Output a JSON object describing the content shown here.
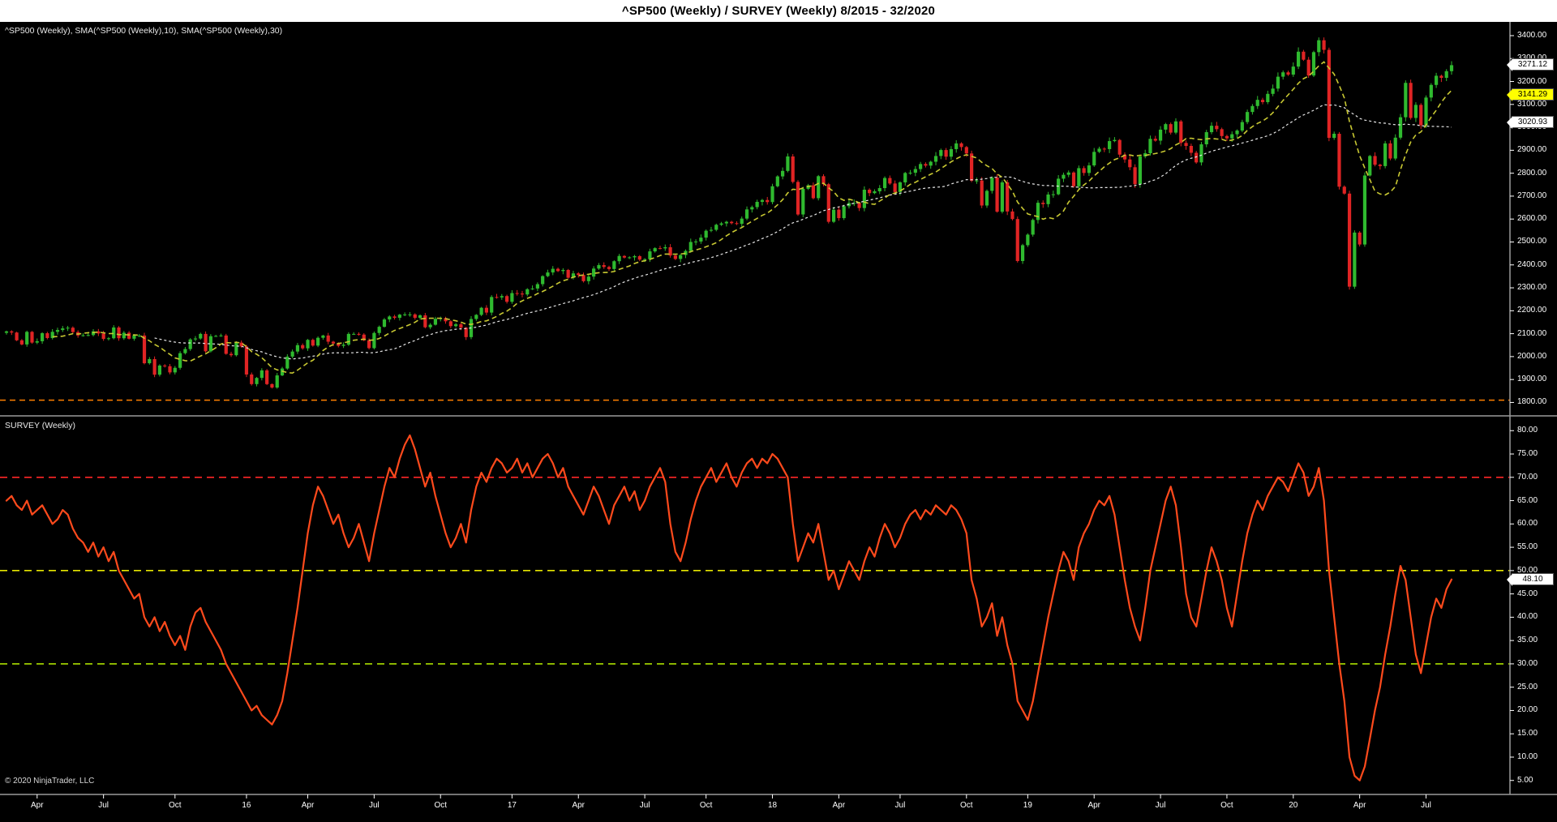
{
  "window": {
    "title": "^SP500 (Weekly) / SURVEY (Weekly)  8/2015 - 32/2020"
  },
  "price_panel": {
    "label": "^SP500 (Weekly), SMA(^SP500 (Weekly),10), SMA(^SP500 (Weekly),30)",
    "price_marker": {
      "label": "3271.12",
      "value": 3271.12,
      "bg": "#ffffff"
    },
    "sma10_marker": {
      "label": "3141.29",
      "value": 3141.29,
      "bg": "#ffff00"
    },
    "sma30_marker": {
      "label": "3020.93",
      "value": 3020.93,
      "bg": "#ffffff"
    }
  },
  "survey_panel": {
    "label": "SURVEY (Weekly)",
    "value_marker": {
      "label": "48.10",
      "value": 48.1,
      "bg": "#ffffff"
    }
  },
  "footer": {
    "copyright": "© 2020 NinjaTrader, LLC"
  },
  "chart_data": {
    "type": "multi-panel",
    "title": "^SP500 (Weekly) / SURVEY (Weekly)  8/2015 - 32/2020",
    "x_range": "week 8/2015 to week 32/2020, weekly bars",
    "x_tick_labels": [
      {
        "text": "Apr",
        "week": 6
      },
      {
        "text": "Jul",
        "week": 19
      },
      {
        "text": "Oct",
        "week": 33
      },
      {
        "text": "16",
        "week": 47
      },
      {
        "text": "Apr",
        "week": 59
      },
      {
        "text": "Jul",
        "week": 72
      },
      {
        "text": "Oct",
        "week": 85
      },
      {
        "text": "17",
        "week": 99
      },
      {
        "text": "Apr",
        "week": 112
      },
      {
        "text": "Jul",
        "week": 125
      },
      {
        "text": "Oct",
        "week": 137
      },
      {
        "text": "18",
        "week": 150
      },
      {
        "text": "Apr",
        "week": 163
      },
      {
        "text": "Jul",
        "week": 175
      },
      {
        "text": "Oct",
        "week": 188
      },
      {
        "text": "19",
        "week": 200
      },
      {
        "text": "Apr",
        "week": 213
      },
      {
        "text": "Jul",
        "week": 226
      },
      {
        "text": "Oct",
        "week": 239
      },
      {
        "text": "20",
        "week": 252
      },
      {
        "text": "Apr",
        "week": 265
      },
      {
        "text": "Jul",
        "week": 278
      }
    ],
    "panels": [
      {
        "title": "^SP500 (Weekly), SMA(^SP500 (Weekly),10), SMA(^SP500 (Weekly),30)",
        "type": "candlestick",
        "ylim": [
          1745,
          3460
        ],
        "y_tick_labels": [
          "3400.00",
          "3300.00",
          "3200.00",
          "3100.00",
          "3000.00",
          "2900.00",
          "2800.00",
          "2700.00",
          "2600.00",
          "2500.00",
          "2400.00",
          "2300.00",
          "2200.00",
          "2100.00",
          "2000.00",
          "1900.00",
          "1800.00"
        ],
        "up_color": "#2fba2f",
        "down_color": "#e02424",
        "overlays": [
          {
            "name": "SMA 10",
            "period": 10,
            "color": "#c8c832",
            "last_value": 3141.29
          },
          {
            "name": "SMA 30",
            "period": 30,
            "color": "#e6e6e6",
            "last_value": 3020.93
          }
        ],
        "reference_line": {
          "value": 1810,
          "color": "#ff8000"
        },
        "last_price": 3271.12,
        "weekly_closes": [
          2110,
          2105,
          2071,
          2053,
          2108,
          2061,
          2067,
          2102,
          2081,
          2108,
          2116,
          2123,
          2126,
          2107,
          2092,
          2093,
          2094,
          2110,
          2101,
          2077,
          2080,
          2127,
          2080,
          2104,
          2078,
          2092,
          2092,
          1971,
          1989,
          1921,
          1961,
          1958,
          1931,
          1951,
          2015,
          2033,
          2075,
          2079,
          2099,
          2023,
          2089,
          2090,
          2092,
          2012,
          2006,
          2061,
          2044,
          1922,
          1880,
          1907,
          1940,
          1880,
          1865,
          1918,
          1948,
          2000,
          2022,
          2050,
          2036,
          2073,
          2048,
          2082,
          2092,
          2065,
          2057,
          2047,
          2052,
          2099,
          2099,
          2096,
          2071,
          2037,
          2103,
          2130,
          2162,
          2175,
          2169,
          2183,
          2184,
          2184,
          2169,
          2180,
          2128,
          2139,
          2165,
          2168,
          2154,
          2133,
          2141,
          2126,
          2085,
          2164,
          2182,
          2213,
          2192,
          2260,
          2258,
          2264,
          2239,
          2277,
          2275,
          2271,
          2294,
          2297,
          2316,
          2351,
          2367,
          2383,
          2373,
          2378,
          2344,
          2363,
          2356,
          2329,
          2349,
          2384,
          2399,
          2391,
          2382,
          2416,
          2439,
          2432,
          2433,
          2438,
          2423,
          2425,
          2459,
          2473,
          2472,
          2477,
          2441,
          2426,
          2443,
          2461,
          2500,
          2502,
          2519,
          2549,
          2553,
          2575,
          2581,
          2588,
          2582,
          2579,
          2602,
          2642,
          2652,
          2675,
          2683,
          2674,
          2743,
          2786,
          2810,
          2873,
          2762,
          2620,
          2732,
          2747,
          2691,
          2787,
          2752,
          2588,
          2641,
          2604,
          2656,
          2670,
          2670,
          2648,
          2728,
          2713,
          2721,
          2735,
          2779,
          2755,
          2718,
          2760,
          2801,
          2802,
          2818,
          2840,
          2833,
          2850,
          2875,
          2901,
          2872,
          2905,
          2930,
          2914,
          2886,
          2767,
          2768,
          2659,
          2723,
          2781,
          2632,
          2760,
          2633,
          2600,
          2417,
          2486,
          2532,
          2596,
          2671,
          2665,
          2707,
          2708,
          2776,
          2793,
          2803,
          2743,
          2822,
          2801,
          2834,
          2893,
          2907,
          2905,
          2940,
          2945,
          2881,
          2860,
          2826,
          2752,
          2873,
          2887,
          2950,
          2942,
          2990,
          3014,
          2977,
          3026,
          2932,
          2919,
          2889,
          2847,
          2926,
          2979,
          3007,
          2992,
          2962,
          2952,
          2970,
          2986,
          3023,
          3067,
          3093,
          3120,
          3110,
          3146,
          3169,
          3221,
          3240,
          3230,
          3265,
          3330,
          3295,
          3226,
          3328,
          3380,
          3338,
          2954,
          2972,
          2741,
          2711,
          2305,
          2541,
          2489,
          2790,
          2875,
          2837,
          2831,
          2930,
          2864,
          2955,
          3044,
          3194,
          3041,
          3098,
          3009,
          3130,
          3185,
          3225,
          3216,
          3245,
          3271.12
        ]
      },
      {
        "title": "SURVEY (Weekly)",
        "type": "line",
        "ylim": [
          2,
          83
        ],
        "y_tick_labels": [
          "80.00",
          "75.00",
          "70.00",
          "65.00",
          "60.00",
          "55.00",
          "50.00",
          "45.00",
          "40.00",
          "35.00",
          "30.00",
          "25.00",
          "20.00",
          "15.00",
          "10.00",
          "5.00"
        ],
        "color": "#ff4a1c",
        "reference_lines": [
          {
            "value": 70,
            "color": "#ff2626"
          },
          {
            "value": 50,
            "color": "#e6e600"
          },
          {
            "value": 30,
            "color": "#aadd00"
          }
        ],
        "last_value": 48.1,
        "values": [
          65,
          66,
          64,
          63,
          65,
          62,
          63,
          64,
          62,
          60,
          61,
          63,
          62,
          59,
          57,
          56,
          54,
          56,
          53,
          55,
          52,
          54,
          50,
          48,
          46,
          44,
          45,
          40,
          38,
          40,
          37,
          39,
          36,
          34,
          36,
          33,
          38,
          41,
          42,
          39,
          37,
          35,
          33,
          30,
          28,
          26,
          24,
          22,
          20,
          21,
          19,
          18,
          17,
          19,
          22,
          28,
          35,
          42,
          50,
          58,
          64,
          68,
          66,
          63,
          60,
          62,
          58,
          55,
          57,
          60,
          56,
          52,
          58,
          63,
          68,
          72,
          70,
          74,
          77,
          79,
          76,
          72,
          68,
          71,
          66,
          62,
          58,
          55,
          57,
          60,
          56,
          63,
          68,
          71,
          69,
          72,
          74,
          73,
          71,
          72,
          74,
          71,
          73,
          70,
          72,
          74,
          75,
          73,
          70,
          72,
          68,
          66,
          64,
          62,
          65,
          68,
          66,
          63,
          60,
          64,
          66,
          68,
          65,
          67,
          63,
          65,
          68,
          70,
          72,
          69,
          60,
          54,
          52,
          56,
          61,
          65,
          68,
          70,
          72,
          69,
          71,
          73,
          70,
          68,
          71,
          73,
          74,
          72,
          74,
          73,
          75,
          74,
          72,
          70,
          60,
          52,
          55,
          58,
          56,
          60,
          54,
          48,
          50,
          46,
          49,
          52,
          50,
          48,
          52,
          55,
          53,
          57,
          60,
          58,
          55,
          57,
          60,
          62,
          63,
          61,
          63,
          62,
          64,
          63,
          62,
          64,
          63,
          61,
          58,
          48,
          44,
          38,
          40,
          43,
          36,
          40,
          34,
          30,
          22,
          20,
          18,
          22,
          28,
          34,
          40,
          45,
          50,
          54,
          52,
          48,
          55,
          58,
          60,
          63,
          65,
          64,
          66,
          62,
          55,
          48,
          42,
          38,
          35,
          42,
          50,
          55,
          60,
          65,
          68,
          64,
          55,
          45,
          40,
          38,
          44,
          50,
          55,
          52,
          48,
          42,
          38,
          45,
          52,
          58,
          62,
          65,
          63,
          66,
          68,
          70,
          69,
          67,
          70,
          73,
          71,
          66,
          68,
          72,
          65,
          50,
          40,
          30,
          22,
          10,
          6,
          5,
          8,
          14,
          20,
          25,
          32,
          38,
          45,
          51,
          48,
          40,
          32,
          28,
          34,
          40,
          44,
          42,
          46,
          48.1
        ]
      }
    ]
  }
}
